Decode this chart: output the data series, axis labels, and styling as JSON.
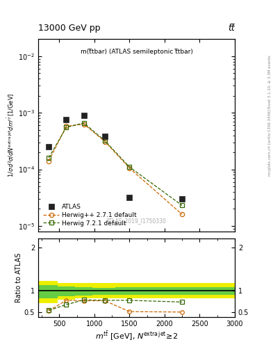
{
  "title_top": "13000 GeV pp",
  "title_top_right": "tt̅",
  "plot_label": "m(t̅tbar) (ATLAS semileptonic t̅tbar)",
  "watermark": "ATLAS_2019_I1750330",
  "right_label_top": "Rivet 3.1.10, ≥ 3.3M events",
  "right_label_bottom": "mcplots.cern.ch [arXiv:1306.3436]",
  "xlabel": "m$^{\\mathit{t\\bar{t}}}$ [GeV], N$^{extra jet}$ ≥ 2",
  "ylabel_main": "1 / σ d²σ / d N$^{extra jet}$ d m$^{t\\bar{t}}$ [1/GeV]",
  "ylabel_ratio": "Ratio to ATLAS",
  "atlas_x": [
    350,
    600,
    850,
    1150,
    1500,
    2250
  ],
  "atlas_y": [
    0.00025,
    0.00075,
    0.0009,
    0.00038,
    3.2e-05,
    3e-05
  ],
  "herwig_pp_x": [
    350,
    600,
    850,
    1150,
    1500,
    2250
  ],
  "herwig_pp_y": [
    0.00014,
    0.00058,
    0.00063,
    0.00031,
    0.000105,
    1.6e-05
  ],
  "herwig72_x": [
    350,
    600,
    850,
    1150,
    1500,
    2250
  ],
  "herwig72_y": [
    0.00016,
    0.00055,
    0.00066,
    0.00032,
    0.00011,
    2.3e-05
  ],
  "herwig_pp_ratio": [
    0.54,
    0.78,
    0.77,
    0.77,
    0.52,
    0.51
  ],
  "herwig72_ratio": [
    0.55,
    0.68,
    0.79,
    0.78,
    0.78,
    0.74
  ],
  "band_edges": [
    200,
    475,
    725,
    975,
    1300,
    1800,
    3000
  ],
  "green_band_low": [
    0.82,
    0.88,
    0.89,
    0.9,
    0.9,
    0.9,
    0.9
  ],
  "green_band_high": [
    1.13,
    1.1,
    1.08,
    1.07,
    1.08,
    1.08,
    1.08
  ],
  "yellow_band_low": [
    0.72,
    0.8,
    0.82,
    0.82,
    0.82,
    0.82,
    0.82
  ],
  "yellow_band_high": [
    1.22,
    1.18,
    1.17,
    1.17,
    1.18,
    1.18,
    1.18
  ],
  "ylim_main": [
    8e-06,
    0.02
  ],
  "ylim_ratio": [
    0.4,
    2.2
  ],
  "xlim": [
    200,
    3000
  ],
  "xticks": [
    500,
    1000,
    1500,
    2000,
    2500,
    3000
  ],
  "xtick_labels": [
    "500",
    "1000",
    "1500",
    "2000",
    "2500",
    "3000"
  ],
  "atlas_color": "#222222",
  "herwig_pp_color": "#cc6600",
  "herwig72_color": "#336600",
  "green_band_color": "#66cc44",
  "yellow_band_color": "#eeee00"
}
